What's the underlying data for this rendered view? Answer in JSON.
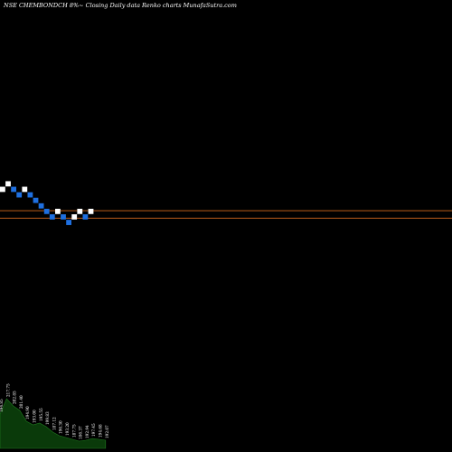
{
  "title": "NSE CHEMBONDCH 8%~  Closing Daily data  Renko  charts MunafaSutra.com",
  "colors": {
    "background": "#000000",
    "up_brick": "#ffffff",
    "down_brick": "#1e6fe0",
    "level_line": "#d2691e",
    "volume_fill": "#0a3a0a",
    "volume_edge": "#1f7a1f"
  },
  "chart_data": {
    "type": "renko",
    "bricks": [
      {
        "dir": "up",
        "level": 4
      },
      {
        "dir": "up",
        "level": 5
      },
      {
        "dir": "down",
        "level": 4
      },
      {
        "dir": "down",
        "level": 3
      },
      {
        "dir": "up",
        "level": 4
      },
      {
        "dir": "down",
        "level": 3
      },
      {
        "dir": "down",
        "level": 2
      },
      {
        "dir": "down",
        "level": 1
      },
      {
        "dir": "down",
        "level": 0
      },
      {
        "dir": "down",
        "level": -1
      },
      {
        "dir": "up",
        "level": 0
      },
      {
        "dir": "down",
        "level": -1
      },
      {
        "dir": "down",
        "level": -2
      },
      {
        "dir": "up",
        "level": -1
      },
      {
        "dir": "up",
        "level": 0
      },
      {
        "dir": "down",
        "level": -1
      },
      {
        "dir": "up",
        "level": 0
      }
    ],
    "level_lines": [
      0.15,
      -1.2
    ],
    "volume_labels": [
      "194.85",
      "217.75",
      "202.85",
      "201.40",
      "194.90",
      "193.00",
      "195.55",
      "199.83",
      "187.12",
      "196.30",
      "193.20",
      "187.75",
      "186.37",
      "192.94",
      "197.45",
      "194.68",
      "192.07"
    ],
    "volume_values": [
      38,
      55,
      47,
      42,
      30,
      26,
      28,
      24,
      18,
      14,
      12,
      10,
      8,
      9,
      11,
      10,
      9
    ]
  }
}
